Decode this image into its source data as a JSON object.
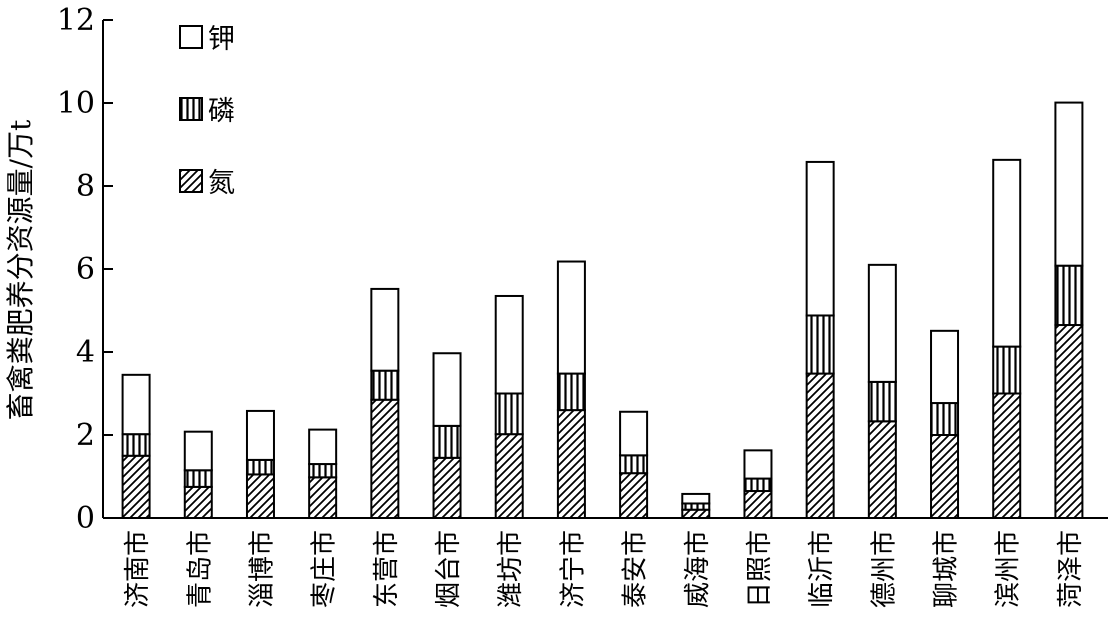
{
  "chart_data": {
    "type": "bar",
    "stacked": true,
    "title": "",
    "xlabel": "",
    "ylabel": "畜禽粪肥养分资源量/万t",
    "ylim": [
      0,
      12
    ],
    "yticks": [
      0,
      2,
      4,
      6,
      8,
      10,
      12
    ],
    "grid": false,
    "legend_position": "top-left",
    "categories": [
      "济南市",
      "青岛市",
      "淄博市",
      "枣庄市",
      "东营市",
      "烟台市",
      "潍坊市",
      "济宁市",
      "泰安市",
      "威海市",
      "日照市",
      "临沂市",
      "德州市",
      "聊城市",
      "滨州市",
      "菏泽市"
    ],
    "series": [
      {
        "name": "氮",
        "pattern": "diagonal-hatch",
        "values": [
          1.5,
          0.75,
          1.05,
          0.98,
          2.85,
          1.45,
          2.02,
          2.6,
          1.08,
          0.2,
          0.65,
          3.48,
          2.33,
          2.0,
          3.0,
          4.65
        ]
      },
      {
        "name": "磷",
        "pattern": "vertical-stripes",
        "values": [
          0.52,
          0.4,
          0.35,
          0.32,
          0.7,
          0.77,
          0.98,
          0.88,
          0.43,
          0.15,
          0.3,
          1.4,
          0.95,
          0.77,
          1.13,
          1.43
        ]
      },
      {
        "name": "钾",
        "pattern": "empty",
        "values": [
          1.43,
          0.93,
          1.18,
          0.83,
          1.97,
          1.75,
          2.35,
          2.7,
          1.05,
          0.23,
          0.68,
          3.7,
          2.82,
          1.74,
          4.5,
          3.93
        ]
      }
    ]
  }
}
